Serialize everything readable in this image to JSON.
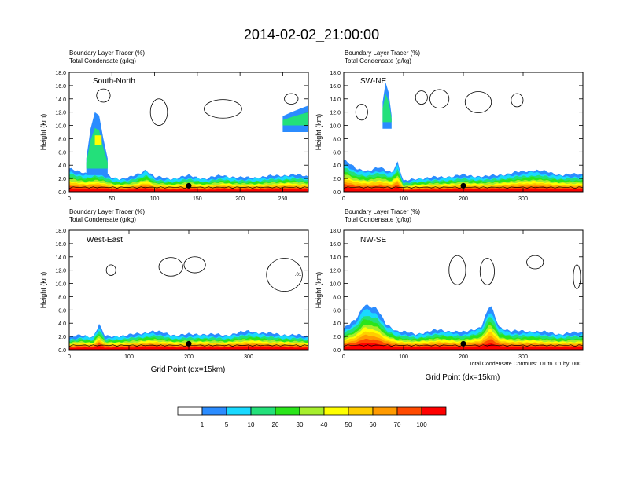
{
  "figure": {
    "title": "2014-02-02_21:00:00",
    "footnote": "Total Condensate Contours: .01 to .01 by .000"
  },
  "colors": {
    "bins": [
      "#ffffff",
      "#2b8cff",
      "#19d9ff",
      "#23e07a",
      "#2ae51a",
      "#a6ee2c",
      "#ffff00",
      "#ffce00",
      "#ff9a00",
      "#ff4a00",
      "#ff0000"
    ],
    "contour": "#000000",
    "marker": "#000000"
  },
  "colorbar": {
    "labels": [
      "1",
      "5",
      "10",
      "20",
      "30",
      "40",
      "50",
      "60",
      "70",
      "100"
    ]
  },
  "chart_data": [
    {
      "type": "heatmap",
      "title": "South-North",
      "subtitle_lines": [
        "Boundary Layer Tracer   (%)",
        "Total Condensate   (g/kg)"
      ],
      "xlabel": "",
      "ylabel": "Height (km)",
      "xlim": [
        0,
        280
      ],
      "ylim": [
        0,
        18
      ],
      "xticks": [
        0,
        50,
        100,
        150,
        200,
        250
      ],
      "yticks": [
        "0.0",
        "2.0",
        "4.0",
        "6.0",
        "8.0",
        "10.0",
        "12.0",
        "14.0",
        "16.0",
        "18.0"
      ],
      "marker_x": 140,
      "series": [
        {
          "name": "tracer_top_km",
          "x": [
            0,
            10,
            20,
            30,
            40,
            50,
            60,
            70,
            80,
            90,
            100,
            120,
            140,
            160,
            180,
            200,
            220,
            240,
            260,
            280
          ],
          "values": [
            3.5,
            3.0,
            2.8,
            3.2,
            2.8,
            2.2,
            2.0,
            2.1,
            2.6,
            3.4,
            2.2,
            2.0,
            2.4,
            2.0,
            2.5,
            2.1,
            2.2,
            2.4,
            2.6,
            2.3
          ]
        },
        {
          "name": "plume_top_km",
          "x": [
            20,
            25,
            30,
            35,
            40,
            45
          ],
          "values": [
            5.0,
            9.5,
            12.0,
            11.5,
            8.0,
            5.0
          ]
        },
        {
          "name": "upper_layer_top_km",
          "x": [
            250,
            260,
            270,
            280
          ],
          "values": [
            11.4,
            12.0,
            12.5,
            13.0
          ]
        }
      ],
      "bottom_bins": [
        10,
        9,
        8
      ]
    },
    {
      "type": "heatmap",
      "title": "SW-NE",
      "subtitle_lines": [
        "Boundary Layer Tracer   (%)",
        "Total Condensate   (g/kg)"
      ],
      "xlabel": "",
      "ylabel": "Height (km)",
      "xlim": [
        0,
        400
      ],
      "ylim": [
        0,
        18
      ],
      "xticks": [
        0,
        100,
        200,
        300
      ],
      "yticks": [
        "0.0",
        "2.0",
        "4.0",
        "6.0",
        "8.0",
        "10.0",
        "12.0",
        "14.0",
        "16.0",
        "18.0"
      ],
      "marker_x": 200,
      "series": [
        {
          "name": "tracer_top_km",
          "x": [
            0,
            20,
            40,
            60,
            80,
            90,
            100,
            120,
            160,
            200,
            240,
            280,
            320,
            360,
            400
          ],
          "values": [
            4.8,
            3.5,
            3.2,
            3.6,
            3.0,
            4.5,
            1.5,
            2.0,
            2.2,
            2.5,
            2.3,
            2.8,
            3.3,
            2.6,
            2.6
          ]
        },
        {
          "name": "upper_cloud_top_km",
          "x": [
            65,
            70,
            75,
            80
          ],
          "values": [
            13.5,
            16.5,
            15.0,
            11.5
          ]
        }
      ],
      "bottom_bins": [
        10,
        9,
        8
      ]
    },
    {
      "type": "heatmap",
      "title": "West-East",
      "subtitle_lines": [
        "Boundary Layer Tracer   (%)",
        "Total Condensate   (g/kg)"
      ],
      "xlabel": "Grid Point (dx=15km)",
      "ylabel": "Height (km)",
      "xlim": [
        0,
        400
      ],
      "ylim": [
        0,
        18
      ],
      "xticks": [
        0,
        100,
        200,
        300
      ],
      "yticks": [
        "0.0",
        "2.0",
        "4.0",
        "6.0",
        "8.0",
        "10.0",
        "12.0",
        "14.0",
        "16.0",
        "18.0"
      ],
      "marker_x": 200,
      "series": [
        {
          "name": "tracer_top_km",
          "x": [
            0,
            20,
            40,
            50,
            60,
            100,
            140,
            180,
            220,
            260,
            300,
            340,
            380,
            400
          ],
          "values": [
            1.8,
            2.2,
            2.0,
            3.8,
            2.0,
            2.2,
            2.8,
            2.2,
            2.4,
            2.2,
            2.8,
            2.4,
            2.2,
            2.0
          ]
        }
      ],
      "contour_label": ".01",
      "bottom_bins": [
        10,
        9,
        8
      ]
    },
    {
      "type": "heatmap",
      "title": "NW-SE",
      "subtitle_lines": [
        "Boundary Layer Tracer   (%)",
        "Total Condensate   (g/kg)"
      ],
      "xlabel": "Grid Point (dx=15km)",
      "ylabel": "Height (km)",
      "xlim": [
        0,
        400
      ],
      "ylim": [
        0,
        18
      ],
      "xticks": [
        0,
        100,
        200,
        300
      ],
      "yticks": [
        "0.0",
        "2.0",
        "4.0",
        "6.0",
        "8.0",
        "10.0",
        "12.0",
        "14.0",
        "16.0",
        "18.0"
      ],
      "marker_x": 200,
      "series": [
        {
          "name": "tracer_top_km",
          "x": [
            0,
            20,
            35,
            45,
            55,
            70,
            90,
            120,
            160,
            200,
            230,
            245,
            260,
            280,
            320,
            360,
            400
          ],
          "values": [
            3.2,
            4.5,
            7.0,
            6.5,
            6.2,
            4.0,
            2.8,
            2.4,
            3.0,
            2.6,
            3.5,
            6.8,
            3.5,
            2.8,
            2.8,
            2.4,
            2.6
          ]
        }
      ],
      "bottom_bins": [
        10,
        9,
        8
      ]
    }
  ]
}
